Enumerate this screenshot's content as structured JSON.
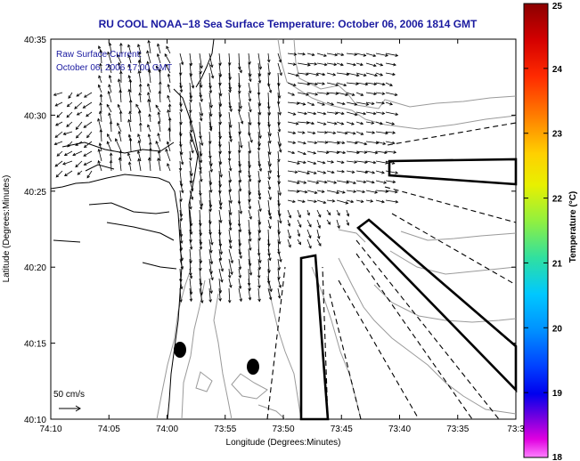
{
  "title": "RU COOL  NOAA−18  Sea Surface Temperature:  October 06, 2006 1814 GMT",
  "current_legend": {
    "line1": "Raw Surface Current:",
    "line2": "October 06, 2006 17:00 GMT"
  },
  "scale_label": "50 cm/s",
  "axes": {
    "xlabel": "Longitude (Degrees:Minutes)",
    "ylabel": "Latitude (Degrees:Minutes)",
    "x_ticks": [
      "74:10",
      "74:05",
      "74:00",
      "73:55",
      "73:50",
      "73:45",
      "73:40",
      "73:35",
      "73:3"
    ],
    "y_ticks": [
      "40:35",
      "40:30",
      "40:25",
      "40:20",
      "40:15",
      "40:10"
    ]
  },
  "colorbar": {
    "label": "Temperature (°C)",
    "ticks": [
      "25",
      "24",
      "23",
      "22",
      "21",
      "20",
      "19",
      "18"
    ],
    "range": [
      18,
      25
    ]
  },
  "colors": {
    "title": "#1a1aa0",
    "frame": "#000000",
    "contour": "#9a9a9a",
    "coast": "#000000"
  }
}
